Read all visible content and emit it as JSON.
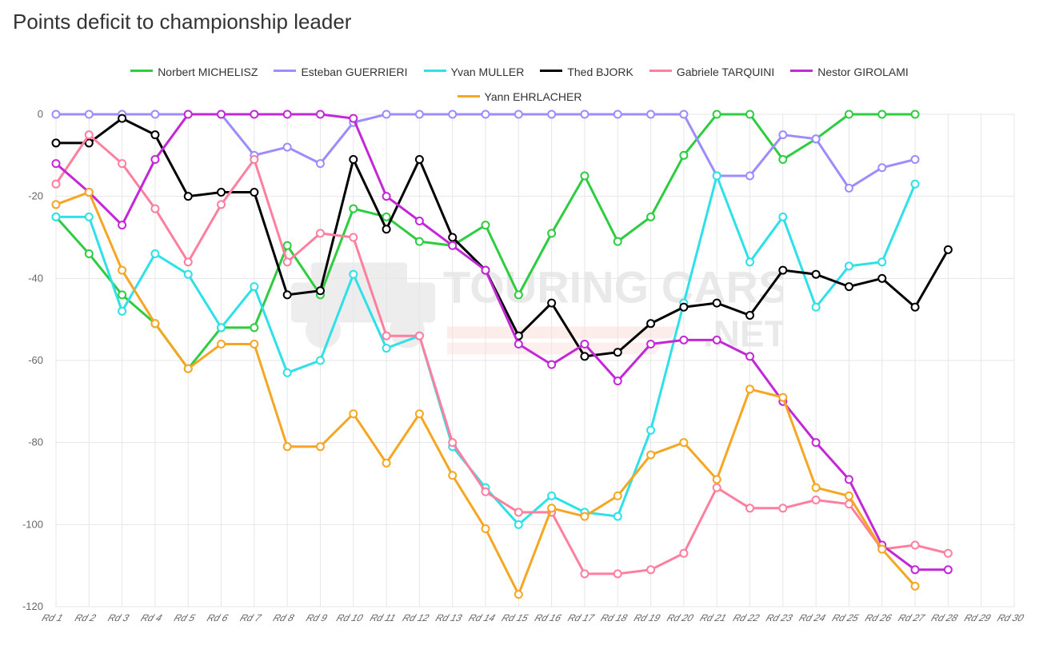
{
  "title": "Points deficit to championship leader",
  "background_color": "#ffffff",
  "grid_color": "#e6e6e6",
  "axis_text_color": "#666666",
  "title_fontsize": 26,
  "legend_fontsize": 14,
  "axis_fontsize": 12,
  "line_width": 3,
  "marker_radius": 4.5,
  "y_axis": {
    "min": -120,
    "max": 0,
    "step": 20,
    "ticks": [
      0,
      -20,
      -40,
      -60,
      -80,
      -100,
      -120
    ]
  },
  "x_axis": {
    "count": 30,
    "label_prefix": "Rd "
  },
  "watermark": {
    "text_main": "TOURING CARS",
    "text_sub": ".NET",
    "accent_color": "#e74c3c"
  },
  "legend_rows": [
    [
      "Norbert MICHELISZ",
      "Esteban GUERRIERI",
      "Yvan MULLER",
      "Thed BJORK",
      "Gabriele TARQUINI",
      "Nestor GIROLAMI"
    ],
    [
      "Yann EHRLACHER"
    ]
  ],
  "series": [
    {
      "name": "Norbert MICHELISZ",
      "color": "#2ecc40",
      "data": [
        -25,
        -34,
        -44,
        -51,
        -62,
        -52,
        -52,
        -32,
        -44,
        -23,
        -25,
        -31,
        -32,
        -27,
        -44,
        -29,
        -15,
        -31,
        -25,
        -10,
        0,
        0,
        -11,
        -6,
        0,
        0,
        0
      ]
    },
    {
      "name": "Esteban GUERRIERI",
      "color": "#9b8cff",
      "data": [
        0,
        0,
        0,
        0,
        0,
        0,
        -10,
        -8,
        -12,
        -2,
        0,
        0,
        0,
        0,
        0,
        0,
        0,
        0,
        0,
        0,
        -15,
        -15,
        -5,
        -6,
        -18,
        -13,
        -11
      ]
    },
    {
      "name": "Yvan MULLER",
      "color": "#2ee0e8",
      "color_line": "#2ee0e8",
      "data": [
        -25,
        -25,
        -48,
        -34,
        -39,
        -52,
        -42,
        -63,
        -60,
        -39,
        -57,
        -54,
        -81,
        -91,
        -100,
        -93,
        -97,
        -98,
        -77,
        -46,
        -15,
        -36,
        -25,
        -47,
        -37,
        -36,
        -17
      ]
    },
    {
      "name": "Thed BJORK",
      "color": "#000000",
      "data": [
        -7,
        -7,
        -1,
        -5,
        -20,
        -19,
        -19,
        -44,
        -43,
        -11,
        -28,
        -11,
        -30,
        -38,
        -54,
        -46,
        -59,
        -58,
        -51,
        -47,
        -46,
        -49,
        -38,
        -39,
        -42,
        -40,
        -47,
        -33
      ]
    },
    {
      "name": "Gabriele TARQUINI",
      "color": "#ff7f9e",
      "data": [
        -17,
        -5,
        -12,
        -23,
        -36,
        -22,
        -11,
        -36,
        -29,
        -30,
        -54,
        -54,
        -80,
        -92,
        -97,
        -97,
        -112,
        -112,
        -111,
        -107,
        -91,
        -96,
        -96,
        -94,
        -95,
        -106,
        -105,
        -107
      ]
    },
    {
      "name": "Nestor GIROLAMI",
      "color": "#c228d6",
      "data": [
        -12,
        -19,
        -27,
        -11,
        0,
        0,
        0,
        0,
        0,
        -1,
        -20,
        -26,
        -32,
        -38,
        -56,
        -61,
        -56,
        -65,
        -56,
        -55,
        -55,
        -59,
        -70,
        -80,
        -89,
        -105,
        -111,
        -111
      ]
    },
    {
      "name": "Yann EHRLACHER",
      "color": "#f5a623",
      "data": [
        -22,
        -19,
        -38,
        -51,
        -62,
        -56,
        -56,
        -81,
        -81,
        -73,
        -85,
        -73,
        -88,
        -101,
        -117,
        -96,
        -98,
        -93,
        -83,
        -80,
        -89,
        -67,
        -69,
        -91,
        -93,
        -106,
        -115
      ]
    }
  ]
}
